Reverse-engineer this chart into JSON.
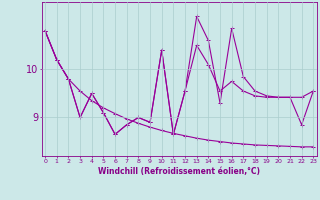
{
  "xlabel": "Windchill (Refroidissement éolien,°C)",
  "x_data": [
    0,
    1,
    2,
    3,
    4,
    5,
    6,
    7,
    8,
    9,
    10,
    11,
    12,
    13,
    14,
    15,
    16,
    17,
    18,
    19,
    20,
    21,
    22,
    23
  ],
  "line1": [
    10.8,
    10.2,
    9.8,
    9.55,
    9.35,
    9.2,
    9.08,
    8.97,
    8.88,
    8.8,
    8.73,
    8.67,
    8.62,
    8.57,
    8.53,
    8.5,
    8.47,
    8.45,
    8.43,
    8.42,
    8.41,
    8.4,
    8.39,
    8.39
  ],
  "line2": [
    10.8,
    10.2,
    9.8,
    9.0,
    9.5,
    9.1,
    8.65,
    8.85,
    9.0,
    8.9,
    10.4,
    8.65,
    9.55,
    10.5,
    10.1,
    9.55,
    9.75,
    9.55,
    9.45,
    9.42,
    9.42,
    9.42,
    9.42,
    9.55
  ],
  "line3": [
    10.8,
    10.2,
    9.8,
    9.0,
    9.5,
    9.1,
    8.65,
    8.85,
    9.0,
    8.9,
    10.4,
    8.65,
    9.55,
    11.1,
    10.6,
    9.3,
    10.85,
    9.85,
    9.55,
    9.45,
    9.42,
    9.42,
    8.85,
    9.55
  ],
  "line_color": "#990099",
  "bg_color": "#cce8e8",
  "grid_color": "#aacece",
  "axis_color": "#880088",
  "ylim_min": 8.2,
  "ylim_max": 11.4,
  "yticks": [
    9,
    10
  ],
  "markersize": 2.0,
  "linewidth": 0.8
}
